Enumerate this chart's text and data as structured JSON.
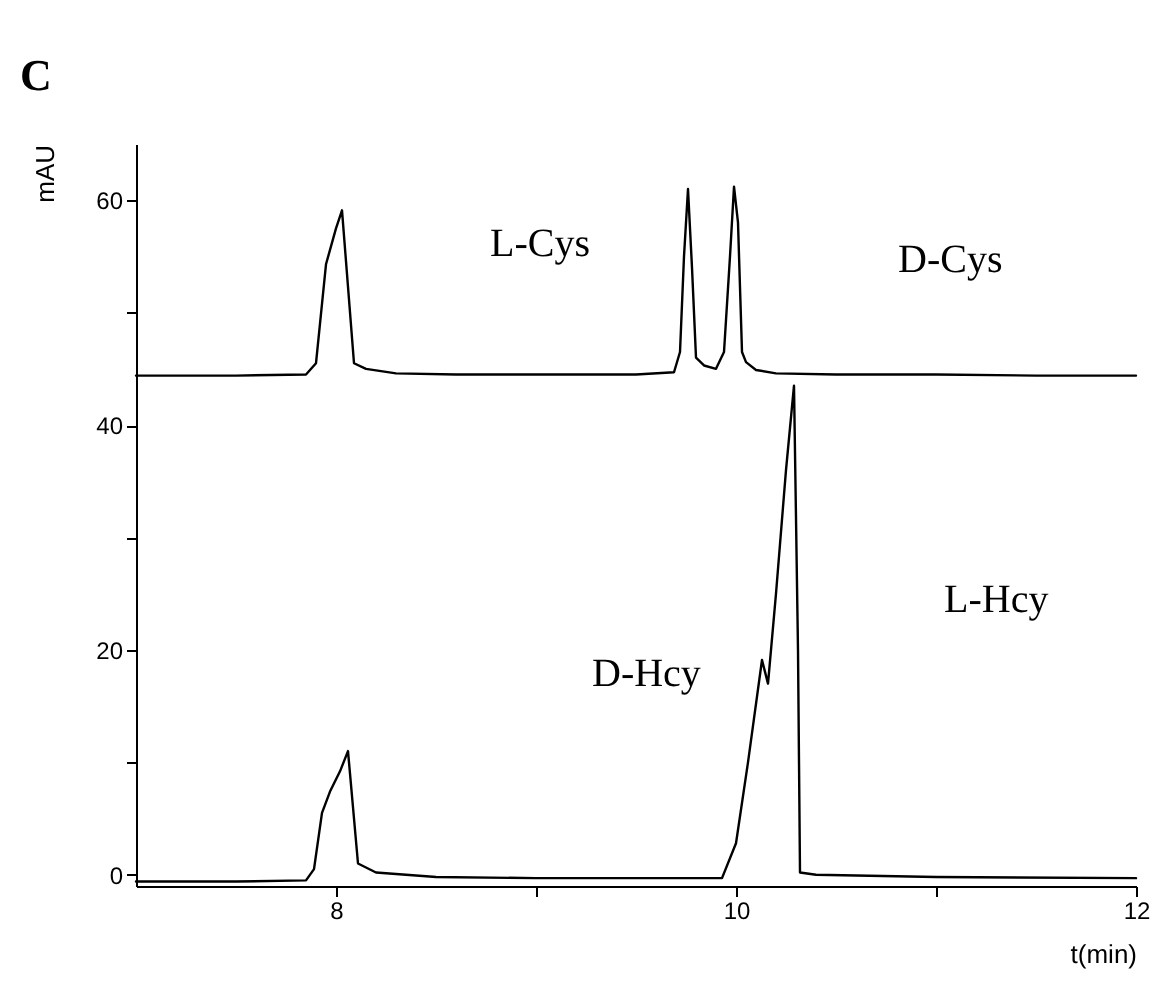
{
  "chart_data": {
    "type": "line",
    "title": "C",
    "xlabel": "t(min)",
    "ylabel": "mAU",
    "xlim": [
      7,
      12
    ],
    "ylim": [
      -1,
      65
    ],
    "xticks": [
      8,
      {
        "value": 9,
        "label": null
      },
      10,
      {
        "value": 11,
        "label": null
      },
      12
    ],
    "yticks": [
      0,
      {
        "value": 10,
        "label": null
      },
      20,
      {
        "value": 30,
        "label": null
      },
      40,
      {
        "value": 50,
        "label": null
      },
      60
    ],
    "grid": false,
    "legend": false,
    "marker": "none",
    "line_style": "solid",
    "series": [
      {
        "color": "#000000",
        "x": [
          7,
          7.5,
          7.85,
          7.9,
          7.95,
          8.0,
          8.03,
          8.09,
          8.15,
          8.3,
          8.6,
          9.0,
          9.5,
          9.69,
          9.72,
          9.74,
          9.76,
          9.78,
          9.8,
          9.84,
          9.9,
          9.94,
          9.97,
          9.99,
          10.01,
          10.03,
          10.05,
          10.1,
          10.2,
          10.5,
          11,
          11.5,
          12
        ],
        "values": [
          44.4,
          44.4,
          44.5,
          45.5,
          54.3,
          57.5,
          59.1,
          45.5,
          45.0,
          44.6,
          44.5,
          44.5,
          44.5,
          44.7,
          46.5,
          55,
          61.0,
          54,
          46.0,
          45.3,
          45.0,
          46.5,
          55,
          61.2,
          58,
          46.5,
          45.6,
          44.9,
          44.6,
          44.5,
          44.5,
          44.4,
          44.4
        ]
      },
      {
        "color": "#000000",
        "x": [
          7,
          7.5,
          7.85,
          7.89,
          7.93,
          7.97,
          8.02,
          8.06,
          8.11,
          8.2,
          8.5,
          9.0,
          9.5,
          9.93,
          10.0,
          10.06,
          10.13,
          10.16,
          10.2,
          10.25,
          10.29,
          10.31,
          10.32,
          10.4,
          11,
          12
        ],
        "values": [
          -0.6,
          -0.6,
          -0.5,
          0.5,
          5.5,
          7.4,
          9.2,
          11.0,
          1.0,
          0.2,
          -0.2,
          -0.3,
          -0.3,
          -0.3,
          2.8,
          10,
          19.1,
          17.0,
          25,
          36,
          43.5,
          20,
          0.2,
          0.0,
          -0.2,
          -0.3
        ]
      }
    ],
    "annotations": [
      "L-Cys",
      "D-Cys",
      "D-Hcy",
      "L-Hcy"
    ]
  }
}
